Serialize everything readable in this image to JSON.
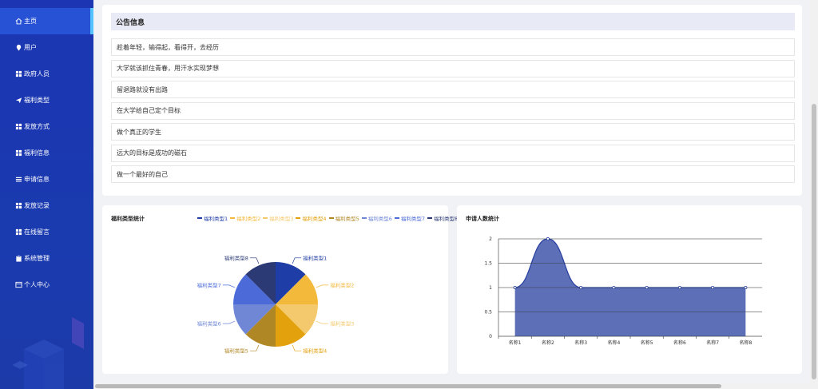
{
  "sidebar": {
    "items": [
      {
        "label": "主页",
        "icon": "home-icon",
        "active": true
      },
      {
        "label": "用户",
        "icon": "location-pin-icon"
      },
      {
        "label": "政府人员",
        "icon": "grid-icon"
      },
      {
        "label": "福利类型",
        "icon": "paper-plane-icon"
      },
      {
        "label": "发放方式",
        "icon": "grid-icon"
      },
      {
        "label": "福利信息",
        "icon": "grid-icon"
      },
      {
        "label": "申请信息",
        "icon": "list-icon"
      },
      {
        "label": "发放记录",
        "icon": "grid-icon"
      },
      {
        "label": "在线留言",
        "icon": "grid-icon"
      },
      {
        "label": "系统管理",
        "icon": "clipboard-icon"
      },
      {
        "label": "个人中心",
        "icon": "window-icon"
      }
    ],
    "accent": "#55c3ff"
  },
  "notice": {
    "title": "公告信息",
    "items": [
      "趁着年轻，输得起，看得开，去经历",
      "大学就该抓住青春，用汗水实现梦想",
      "留退路就没有出路",
      "在大学给自己定个目标",
      "做个真正的学生",
      "远大的目标是成功的磁石",
      "做一个最好的自己"
    ]
  },
  "pie_card": {
    "title": "福利类型统计"
  },
  "line_card": {
    "title": "申请人数统计"
  },
  "chart_data": [
    {
      "type": "pie",
      "title": "福利类型统计",
      "legend_position": "top",
      "categories": [
        "福利类型1",
        "福利类型2",
        "福利类型3",
        "福利类型4",
        "福利类型5",
        "福利类型6",
        "福利类型7",
        "福利类型8"
      ],
      "values": [
        1,
        1,
        1,
        1,
        1,
        1,
        1,
        1
      ],
      "colors": [
        "#1f3da6",
        "#f2b93b",
        "#f4c96e",
        "#e3a10e",
        "#b08725",
        "#6f87d4",
        "#4c6bd8",
        "#2b3a74"
      ]
    },
    {
      "type": "area",
      "title": "申请人数统计",
      "categories": [
        "名称1",
        "名称2",
        "名称3",
        "名称4",
        "名称5",
        "名称6",
        "名称7",
        "名称8"
      ],
      "values": [
        1,
        2,
        1,
        1,
        1,
        1,
        1,
        1
      ],
      "ylim": [
        0,
        2
      ],
      "yticks": [
        "0",
        "0.5",
        "1",
        "1.5",
        "2"
      ],
      "grid": true,
      "smooth": true,
      "color": "#27409f"
    }
  ]
}
